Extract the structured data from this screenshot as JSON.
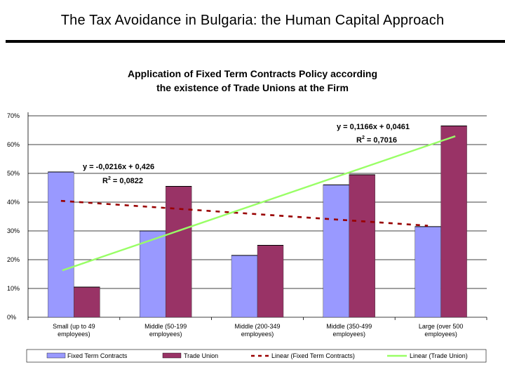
{
  "slide": {
    "title": "The Tax Avoidance in Bulgaria: the Human Capital Approach"
  },
  "colors": {
    "fixed_term": "#9999FF",
    "trade_union": "#993366",
    "trend_fixed": "#990000",
    "trend_union": "#99FF66",
    "grid": "#000000"
  },
  "chart_data": {
    "type": "bar",
    "title_lines": [
      "Application of Fixed Term Contracts Policy according",
      "the existence of Trade Unions at the Firm"
    ],
    "categories": [
      [
        "Small (up to 49",
        "employees)"
      ],
      [
        "Middle (50-199",
        "employees)"
      ],
      [
        "Middle (200-349",
        "employees)"
      ],
      [
        "Middle (350-499",
        "employees)"
      ],
      [
        "Large (over 500",
        "employees)"
      ]
    ],
    "series": [
      {
        "name": "Fixed Term Contracts",
        "values": [
          0.505,
          0.3,
          0.215,
          0.46,
          0.315
        ]
      },
      {
        "name": "Trade Union",
        "values": [
          0.105,
          0.455,
          0.25,
          0.495,
          0.665
        ]
      }
    ],
    "trendlines": [
      {
        "name": "Linear (Fixed Term Contracts)",
        "slope": -0.0216,
        "intercept": 0.426,
        "equation": "y = -0,0216x + 0,426",
        "r2_label": "R",
        "r2_value": " = 0,0822"
      },
      {
        "name": "Linear (Trade Union)",
        "slope": 0.1166,
        "intercept": 0.0461,
        "equation": "y = 0,1166x + 0,0461",
        "r2_label": "R",
        "r2_value": " = 0,7016"
      }
    ],
    "y_ticks": [
      "0%",
      "10%",
      "20%",
      "30%",
      "40%",
      "50%",
      "60%",
      "70%"
    ],
    "ylim": [
      0,
      0.7
    ],
    "grid": true,
    "legend_position": "bottom"
  }
}
